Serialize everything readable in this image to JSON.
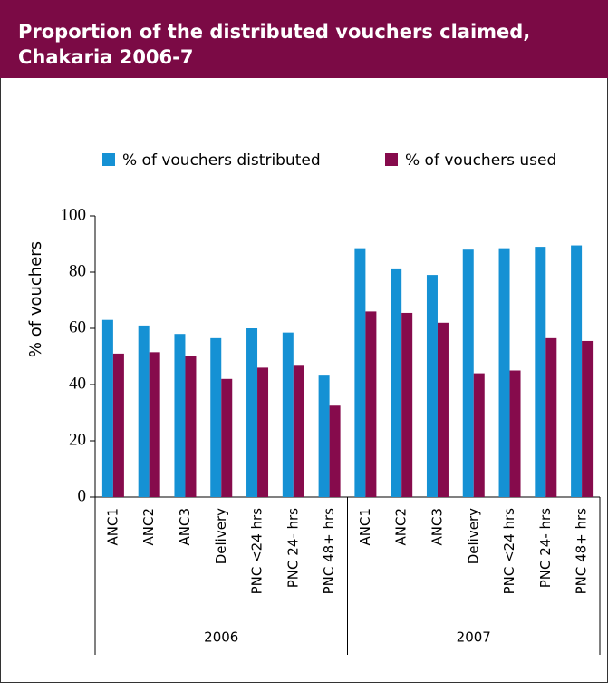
{
  "chart_data": {
    "type": "bar",
    "title": [
      "Proportion of the distributed vouchers claimed,",
      "Chakaria 2006-7"
    ],
    "ylabel": "% of vouchers",
    "categories": [
      "ANC1",
      "ANC2",
      "ANC3",
      "Delivery",
      "PNC <24 hrs",
      "PNC 24- hrs",
      "PNC 48+ hrs",
      "ANC1",
      "ANC2",
      "ANC3",
      "Delivery",
      "PNC <24 hrs",
      "PNC 24- hrs",
      "PNC 48+ hrs"
    ],
    "category_groups": [
      "2006",
      "2007"
    ],
    "series": [
      {
        "name": "% of vouchers distributed",
        "color": "#1591d4",
        "values": [
          63,
          61,
          58,
          56.5,
          60,
          58.5,
          43.5,
          88.5,
          81,
          79,
          88,
          88.5,
          89,
          89.5
        ]
      },
      {
        "name": "% of vouchers used",
        "color": "#860b4c",
        "values": [
          51,
          51.5,
          50,
          42,
          46,
          47,
          32.5,
          66,
          65.5,
          62,
          44,
          45,
          56.5,
          55.5
        ]
      }
    ],
    "ylim": [
      0,
      100
    ],
    "yticks": [
      0,
      20,
      40,
      60,
      80,
      100
    ],
    "grid": false,
    "legend": "top"
  }
}
